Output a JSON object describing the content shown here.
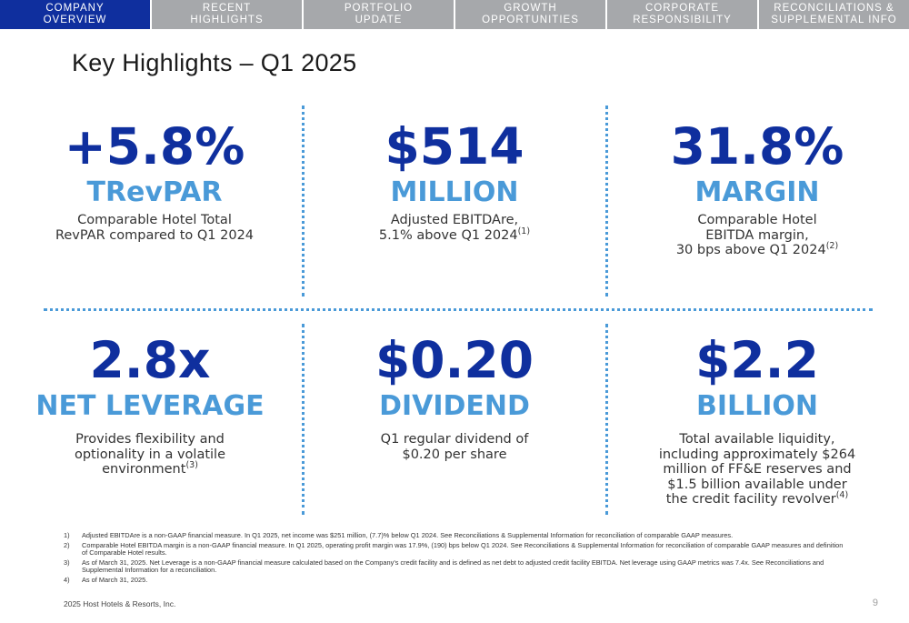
{
  "nav": {
    "tabs": [
      {
        "line1": "COMPANY",
        "line2": "OVERVIEW"
      },
      {
        "line1": "RECENT",
        "line2": "HIGHLIGHTS"
      },
      {
        "line1": "PORTFOLIO",
        "line2": "UPDATE"
      },
      {
        "line1": "GROWTH",
        "line2": "OPPORTUNITIES"
      },
      {
        "line1": "CORPORATE",
        "line2": "RESPONSIBILITY"
      },
      {
        "line1": "RECONCILIATIONS &",
        "line2": "SUPPLEMENTAL INFO"
      }
    ],
    "active_index": 0
  },
  "title": "Key Highlights – Q1 2025",
  "metrics": [
    {
      "value": "+5.8%",
      "label": "TRevPAR",
      "desc_lines": [
        "Comparable Hotel Total",
        "RevPAR compared to Q1 2024"
      ],
      "footnote_ref": ""
    },
    {
      "value": "$514",
      "label": "MILLION",
      "desc_lines": [
        "Adjusted EBITDAre,",
        "5.1% above Q1 2024"
      ],
      "footnote_ref": "(1)"
    },
    {
      "value": "31.8%",
      "label": "MARGIN",
      "desc_lines": [
        "Comparable Hotel",
        "EBITDA margin,",
        "30 bps above Q1 2024"
      ],
      "footnote_ref": "(2)"
    },
    {
      "value": "2.8x",
      "label": "NET LEVERAGE",
      "desc_lines": [
        "Provides flexibility and",
        "optionality in a volatile",
        "environment"
      ],
      "footnote_ref": "(3)"
    },
    {
      "value": "$0.20",
      "label": "DIVIDEND",
      "desc_lines": [
        "Q1 regular dividend of",
        "$0.20 per share"
      ],
      "footnote_ref": ""
    },
    {
      "value": "$2.2",
      "label": "BILLION",
      "desc_lines": [
        "Total available liquidity,",
        "including approximately $264",
        "million of FF&E reserves and",
        "$1.5 billion available under",
        "the credit facility revolver"
      ],
      "footnote_ref": "(4)"
    }
  ],
  "footnotes": [
    {
      "num": "1)",
      "text": "Adjusted EBITDAre is a non-GAAP financial measure. In Q1 2025, net income was $251 million, (7.7)% below Q1 2024. See Reconciliations & Supplemental Information for reconciliation of comparable GAAP measures."
    },
    {
      "num": "2)",
      "text": "Comparable Hotel EBITDA margin is a non-GAAP financial measure. In Q1 2025, operating profit margin was 17.9%, (190) bps below Q1 2024. See Reconciliations & Supplemental Information for reconciliation of comparable GAAP measures and definition of Comparable Hotel results."
    },
    {
      "num": "3)",
      "text": "As of March 31, 2025. Net Leverage is a non-GAAP financial measure calculated based on the Company's credit facility and is defined as net debt to adjusted credit facility EBITDA. Net leverage using GAAP metrics was 7.4x. See Reconciliations and Supplemental Information for a reconciliation."
    },
    {
      "num": "4)",
      "text": "As of March 31, 2025."
    }
  ],
  "copyright": "2025 Host Hotels & Resorts, Inc.",
  "page_number": "9",
  "colors": {
    "nav_active": "#0f2f9e",
    "nav_inactive": "#a6a8ab",
    "value_blue": "#0f2f9e",
    "label_blue": "#4a9ad8",
    "separator": "#4a9ad8"
  }
}
